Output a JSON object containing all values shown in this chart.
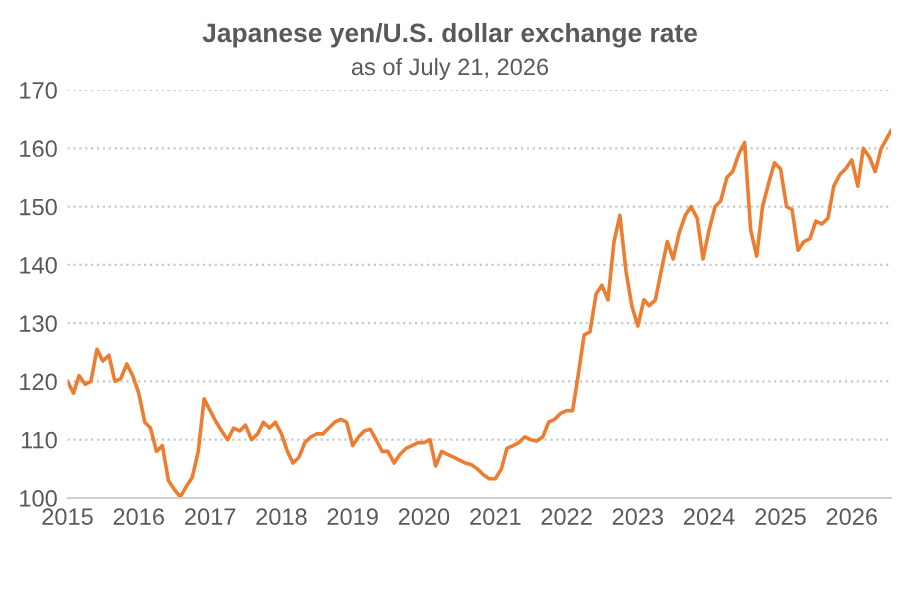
{
  "chart_data": {
    "type": "line",
    "title": "Japanese yen/U.S. dollar exchange rate",
    "subtitle": "as of July 21, 2026",
    "x": [
      "2015-01",
      "2015-02",
      "2015-03",
      "2015-04",
      "2015-05",
      "2015-06",
      "2015-07",
      "2015-08",
      "2015-09",
      "2015-10",
      "2015-11",
      "2015-12",
      "2016-01",
      "2016-02",
      "2016-03",
      "2016-04",
      "2016-05",
      "2016-06",
      "2016-07",
      "2016-08",
      "2016-09",
      "2016-10",
      "2016-11",
      "2016-12",
      "2017-01",
      "2017-02",
      "2017-03",
      "2017-04",
      "2017-05",
      "2017-06",
      "2017-07",
      "2017-08",
      "2017-09",
      "2017-10",
      "2017-11",
      "2017-12",
      "2018-01",
      "2018-02",
      "2018-03",
      "2018-04",
      "2018-05",
      "2018-06",
      "2018-07",
      "2018-08",
      "2018-09",
      "2018-10",
      "2018-11",
      "2018-12",
      "2019-01",
      "2019-02",
      "2019-03",
      "2019-04",
      "2019-05",
      "2019-06",
      "2019-07",
      "2019-08",
      "2019-09",
      "2019-10",
      "2019-11",
      "2019-12",
      "2020-01",
      "2020-02",
      "2020-03",
      "2020-04",
      "2020-05",
      "2020-06",
      "2020-07",
      "2020-08",
      "2020-09",
      "2020-10",
      "2020-11",
      "2020-12",
      "2021-01",
      "2021-02",
      "2021-03",
      "2021-04",
      "2021-05",
      "2021-06",
      "2021-07",
      "2021-08",
      "2021-09",
      "2021-10",
      "2021-11",
      "2021-12",
      "2022-01",
      "2022-02",
      "2022-03",
      "2022-04",
      "2022-05",
      "2022-06",
      "2022-07",
      "2022-08",
      "2022-09",
      "2022-10",
      "2022-11",
      "2022-12",
      "2023-01",
      "2023-02",
      "2023-03",
      "2023-04",
      "2023-05",
      "2023-06",
      "2023-07",
      "2023-08",
      "2023-09",
      "2023-10",
      "2023-11",
      "2023-12",
      "2024-01",
      "2024-02",
      "2024-03",
      "2024-04",
      "2024-05",
      "2024-06",
      "2024-07",
      "2024-08",
      "2024-09",
      "2024-10",
      "2024-11",
      "2024-12",
      "2025-01",
      "2025-02",
      "2025-03",
      "2025-04",
      "2025-05",
      "2025-06",
      "2025-07",
      "2025-08",
      "2025-09",
      "2025-10",
      "2025-11",
      "2025-12",
      "2026-01",
      "2026-02",
      "2026-03",
      "2026-04",
      "2026-05",
      "2026-06",
      "2026-07-21"
    ],
    "series": [
      {
        "color": "#ed7d31",
        "values": [
          120,
          118,
          121,
          119.5,
          120,
          125.5,
          123.5,
          124.5,
          120,
          120.5,
          123,
          121,
          118,
          113,
          112,
          108,
          109,
          103,
          101.5,
          100.2,
          102,
          103.5,
          108,
          117,
          115,
          113,
          111.5,
          110,
          112,
          111.5,
          112.5,
          110,
          111,
          113,
          112,
          113,
          111,
          108,
          106,
          107,
          109.5,
          110.5,
          111,
          111,
          112,
          113,
          113.5,
          113,
          109,
          110.5,
          111.5,
          111.8,
          110,
          108,
          108,
          106,
          107.5,
          108.5,
          109,
          109.5,
          109.5,
          110,
          105.5,
          108,
          107.5,
          107,
          106.5,
          106,
          105.7,
          105,
          104,
          103.3,
          103.3,
          105,
          108.5,
          109,
          109.5,
          110.5,
          110,
          109.8,
          110.5,
          113,
          113.5,
          114.5,
          115,
          115,
          121,
          128,
          128.5,
          135,
          136.5,
          134,
          144,
          148.5,
          139,
          133,
          129.5,
          134,
          133,
          134,
          139,
          144,
          141,
          145.5,
          148.5,
          150,
          148,
          141,
          146,
          150,
          151,
          155,
          156,
          159,
          161,
          146,
          141.5,
          150,
          154,
          157.5,
          156.5,
          150,
          149.5,
          142.5,
          144,
          144.5,
          147.5,
          147,
          148,
          153.5,
          155.5,
          156.5,
          158,
          153.5,
          160,
          158.5,
          156,
          160,
          163
        ]
      }
    ],
    "xlim": [
      "2015-01-01",
      "2026-07-21"
    ],
    "xticks": [
      "2015",
      "2016",
      "2017",
      "2018",
      "2019",
      "2020",
      "2021",
      "2022",
      "2023",
      "2024",
      "2025",
      "2026"
    ],
    "ylim": [
      100,
      170
    ],
    "yticks": [
      100,
      110,
      120,
      130,
      140,
      150,
      160,
      170
    ],
    "grid": "y",
    "marker": "none",
    "line_style": "solid"
  }
}
